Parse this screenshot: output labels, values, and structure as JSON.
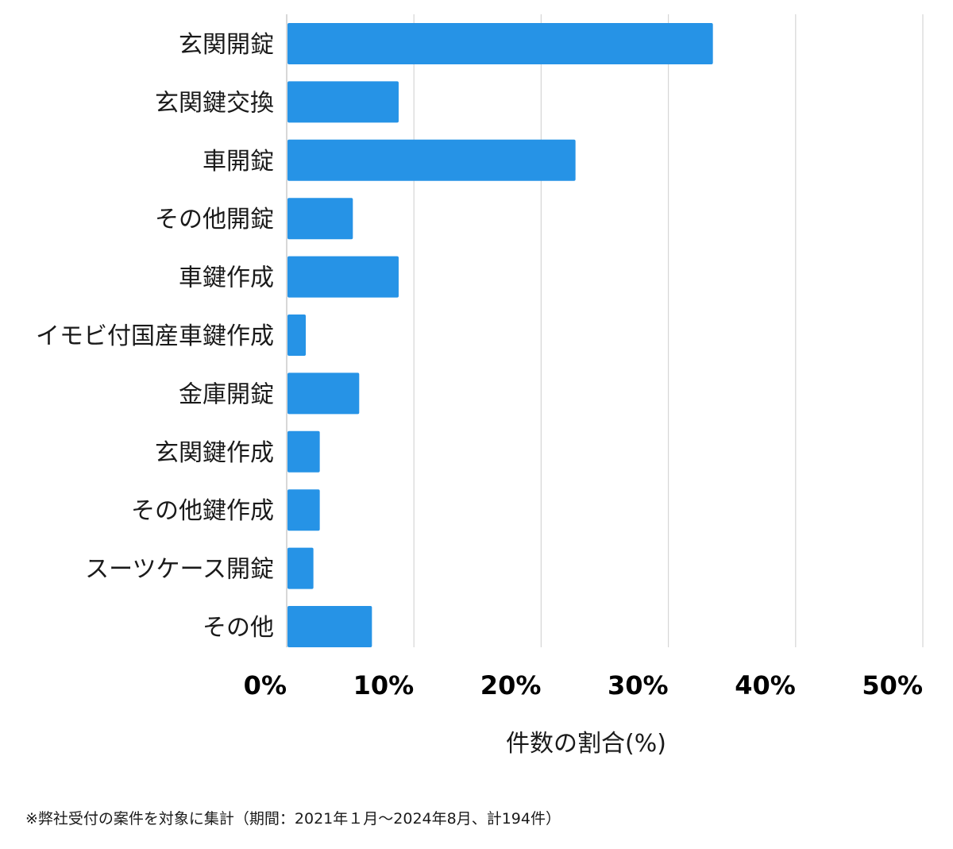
{
  "chart_data": {
    "type": "bar",
    "orientation": "horizontal",
    "categories": [
      "玄関開錠",
      "玄関鍵交換",
      "車開錠",
      "その他開錠",
      "車鍵作成",
      "イモビ付国産車鍵作成",
      "金庫開錠",
      "玄関鍵作成",
      "その他鍵作成",
      "スーツケース開錠",
      "その他"
    ],
    "values": [
      33.5,
      8.8,
      22.7,
      5.2,
      8.8,
      1.5,
      5.7,
      2.6,
      2.6,
      2.1,
      6.7
    ],
    "xlabel": "件数の割合(%)",
    "xlim": [
      0,
      50
    ],
    "xticks": [
      0,
      10,
      20,
      30,
      40,
      50
    ],
    "xtick_labels": [
      "0%",
      "10%",
      "20%",
      "30%",
      "40%",
      "50%"
    ],
    "grid": "vertical",
    "legend": "none",
    "bar_color": "#2693e6"
  },
  "footnote": "※弊社受付の案件を対象に集計（期間：2021年１月〜2024年8月、計194件）"
}
